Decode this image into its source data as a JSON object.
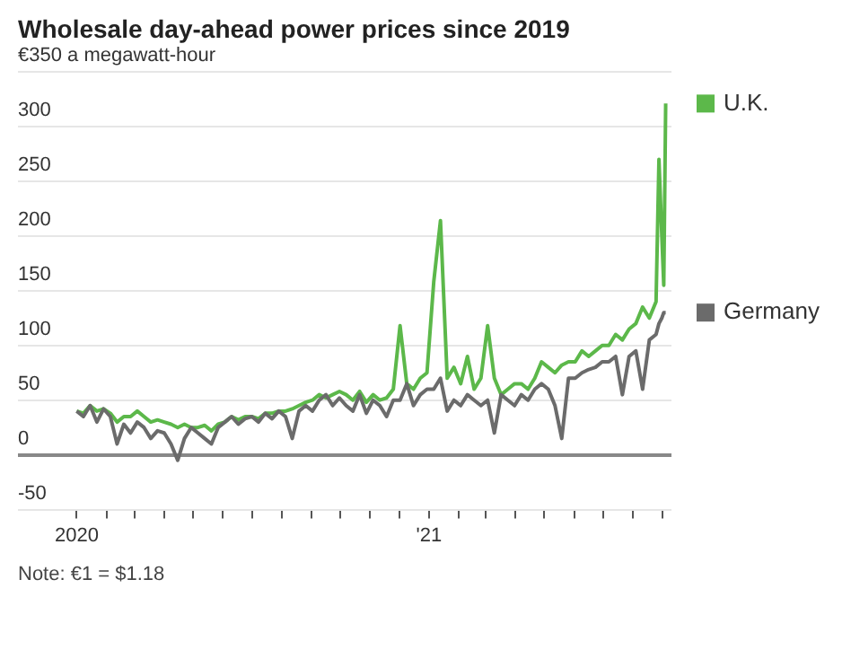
{
  "chart_data": {
    "type": "line",
    "title": "Wholesale day-ahead power prices since 2019",
    "x": [
      "2020-01-01",
      "2020-01-08",
      "2020-01-15",
      "2020-01-22",
      "2020-01-29",
      "2020-02-05",
      "2020-02-12",
      "2020-02-19",
      "2020-02-26",
      "2020-03-04",
      "2020-03-11",
      "2020-03-18",
      "2020-03-25",
      "2020-04-01",
      "2020-04-08",
      "2020-04-15",
      "2020-04-22",
      "2020-04-29",
      "2020-05-06",
      "2020-05-13",
      "2020-05-20",
      "2020-05-27",
      "2020-06-03",
      "2020-06-10",
      "2020-06-17",
      "2020-06-24",
      "2020-07-01",
      "2020-07-08",
      "2020-07-15",
      "2020-07-22",
      "2020-07-29",
      "2020-08-05",
      "2020-08-12",
      "2020-08-19",
      "2020-08-26",
      "2020-09-02",
      "2020-09-09",
      "2020-09-16",
      "2020-09-23",
      "2020-09-30",
      "2020-10-07",
      "2020-10-14",
      "2020-10-21",
      "2020-10-28",
      "2020-11-04",
      "2020-11-11",
      "2020-11-18",
      "2020-11-25",
      "2020-12-02",
      "2020-12-09",
      "2020-12-16",
      "2020-12-23",
      "2020-12-30",
      "2021-01-06",
      "2021-01-13",
      "2021-01-20",
      "2021-01-27",
      "2021-02-03",
      "2021-02-10",
      "2021-02-17",
      "2021-02-24",
      "2021-03-03",
      "2021-03-10",
      "2021-03-17",
      "2021-03-24",
      "2021-03-31",
      "2021-04-07",
      "2021-04-14",
      "2021-04-21",
      "2021-04-28",
      "2021-05-05",
      "2021-05-12",
      "2021-05-19",
      "2021-05-26",
      "2021-06-02",
      "2021-06-09",
      "2021-06-16",
      "2021-06-23",
      "2021-06-30",
      "2021-07-07",
      "2021-07-14",
      "2021-07-21",
      "2021-07-28",
      "2021-08-04",
      "2021-08-11",
      "2021-08-18",
      "2021-08-25",
      "2021-08-28",
      "2021-08-31",
      "2021-09-02",
      "2021-09-04"
    ],
    "series": [
      {
        "name": "U.K.",
        "color": "#5cb84a",
        "values": [
          40,
          38,
          45,
          40,
          42,
          38,
          30,
          35,
          35,
          40,
          35,
          30,
          32,
          30,
          28,
          25,
          28,
          25,
          25,
          27,
          22,
          28,
          30,
          35,
          32,
          35,
          35,
          33,
          38,
          38,
          40,
          40,
          42,
          45,
          48,
          50,
          55,
          52,
          55,
          58,
          55,
          50,
          58,
          48,
          55,
          50,
          52,
          60,
          118,
          65,
          60,
          70,
          75,
          158,
          214,
          70,
          80,
          65,
          90,
          60,
          70,
          118,
          70,
          55,
          60,
          65,
          65,
          60,
          70,
          85,
          80,
          75,
          82,
          85,
          85,
          95,
          90,
          95,
          100,
          100,
          110,
          105,
          115,
          120,
          135,
          125,
          140,
          270,
          200,
          155,
          321
        ]
      },
      {
        "name": "Germany",
        "color": "#6b6b6b",
        "values": [
          40,
          35,
          45,
          30,
          42,
          35,
          10,
          28,
          20,
          30,
          25,
          15,
          22,
          20,
          10,
          -5,
          15,
          25,
          20,
          15,
          10,
          25,
          30,
          35,
          28,
          33,
          35,
          30,
          38,
          33,
          40,
          35,
          15,
          40,
          45,
          40,
          50,
          55,
          45,
          52,
          45,
          40,
          55,
          38,
          50,
          45,
          35,
          50,
          50,
          65,
          45,
          55,
          60,
          60,
          70,
          40,
          50,
          45,
          55,
          50,
          45,
          50,
          20,
          55,
          50,
          45,
          55,
          50,
          60,
          65,
          60,
          45,
          15,
          70,
          70,
          75,
          78,
          80,
          85,
          85,
          90,
          55,
          90,
          95,
          60,
          105,
          110,
          120,
          125,
          130,
          130
        ]
      }
    ],
    "xlim": [
      "2019-11-01",
      "2021-09-10"
    ],
    "xticks": [
      {
        "value": "2020-01",
        "label": "2020"
      },
      {
        "value": "2020-02",
        "label": null
      },
      {
        "value": "2020-03",
        "label": null
      },
      {
        "value": "2020-04",
        "label": null
      },
      {
        "value": "2020-05",
        "label": null
      },
      {
        "value": "2020-06",
        "label": null
      },
      {
        "value": "2020-07",
        "label": null
      },
      {
        "value": "2020-08",
        "label": null
      },
      {
        "value": "2020-09",
        "label": null
      },
      {
        "value": "2020-10",
        "label": null
      },
      {
        "value": "2020-11",
        "label": null
      },
      {
        "value": "2020-12",
        "label": null
      },
      {
        "value": "2021-01",
        "label": "'21"
      },
      {
        "value": "2021-02",
        "label": null
      },
      {
        "value": "2021-03",
        "label": null
      },
      {
        "value": "2021-04",
        "label": null
      },
      {
        "value": "2021-05",
        "label": null
      },
      {
        "value": "2021-06",
        "label": null
      },
      {
        "value": "2021-07",
        "label": null
      },
      {
        "value": "2021-08",
        "label": null
      },
      {
        "value": "2021-09",
        "label": null
      }
    ],
    "ylim": [
      -50,
      350
    ],
    "yticks": [
      -50,
      0,
      50,
      100,
      150,
      200,
      250,
      300,
      {
        "value": 350,
        "label": "€350 a megawatt-hour"
      }
    ],
    "grid": "y",
    "legend": "right",
    "annotations": [
      "Note: €1 = $1.18"
    ]
  }
}
